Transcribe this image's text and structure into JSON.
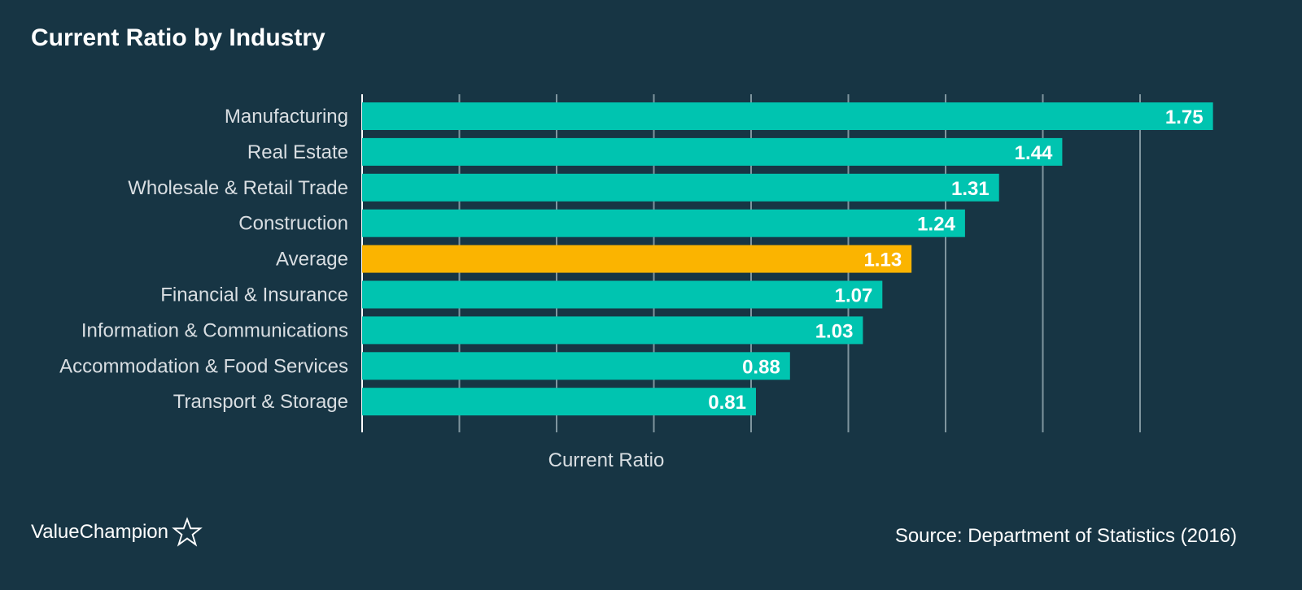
{
  "chart_data": {
    "type": "bar",
    "orientation": "horizontal",
    "title": "Current Ratio by Industry",
    "xlabel": "Current Ratio",
    "ylabel": "",
    "categories": [
      "Manufacturing",
      "Real Estate",
      "Wholesale & Retail Trade",
      "Construction",
      "Average",
      "Financial & Insurance",
      "Information & Communications",
      "Accommodation & Food Services",
      "Transport & Storage"
    ],
    "values": [
      1.75,
      1.44,
      1.31,
      1.24,
      1.13,
      1.07,
      1.03,
      0.88,
      0.81
    ],
    "value_labels": [
      "1.75",
      "1.44",
      "1.31",
      "1.24",
      "1.13",
      "1.07",
      "1.03",
      "0.88",
      "0.81"
    ],
    "highlight_category": "Average",
    "xlim": [
      0,
      1.9
    ],
    "grid_values": [
      0.2,
      0.4,
      0.6,
      0.8,
      1.0,
      1.2,
      1.4,
      1.6
    ],
    "grid": true,
    "x_tick_labels_visible": false,
    "colors": {
      "background": "#173544",
      "bar": "#00c4b0",
      "highlight": "#fbb400",
      "gridline": "#7f959e",
      "text": "#ffffff",
      "label_text": "#d9dee2"
    }
  },
  "footer": {
    "brand": "ValueChampion",
    "brand_icon": "star-icon",
    "source": "Source: Department of Statistics (2016)"
  }
}
